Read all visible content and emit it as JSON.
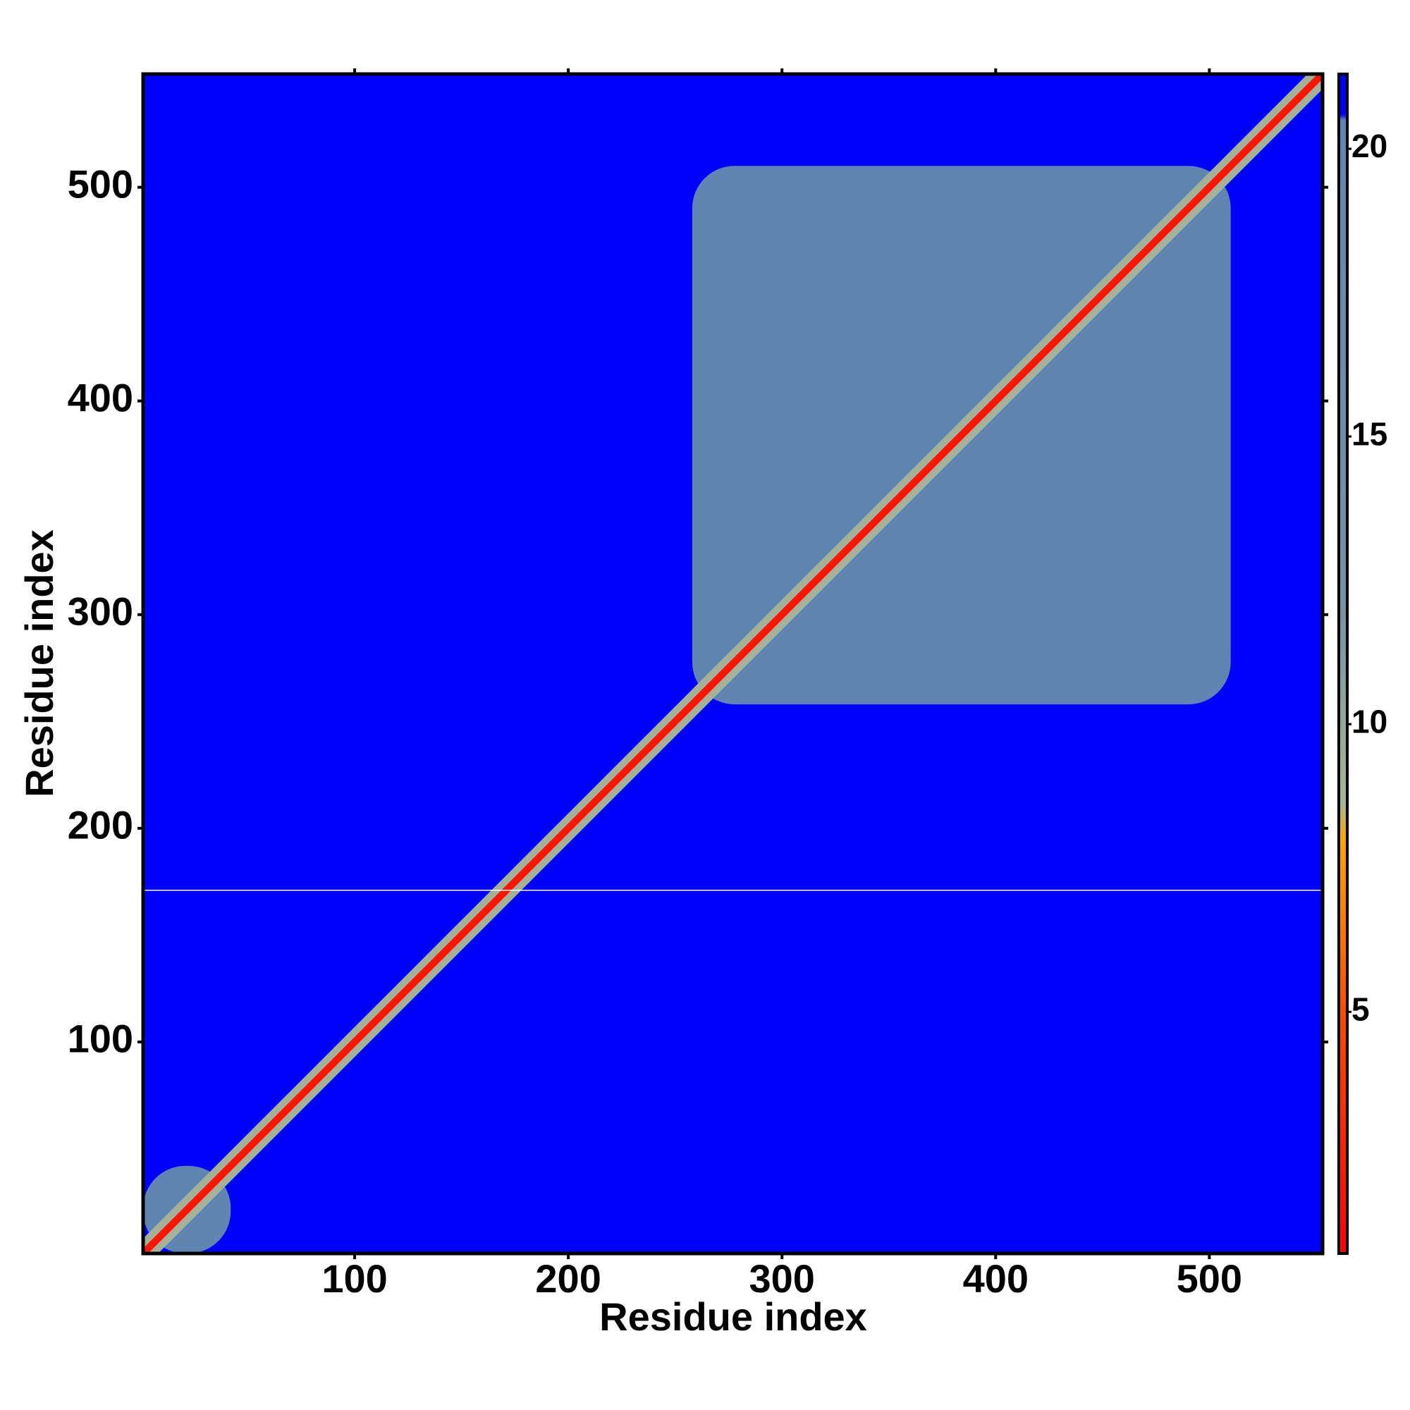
{
  "chart_data": {
    "type": "heatmap",
    "x_label": "Residue index",
    "y_label": "Residue index",
    "xlim": [
      1,
      553
    ],
    "ylim": [
      1,
      553
    ],
    "xticks": [
      100,
      200,
      300,
      400,
      500
    ],
    "yticks": [
      100,
      200,
      300,
      400,
      500
    ],
    "background_value": 21,
    "diagonal": {
      "band": 9,
      "core": 2
    },
    "domains": [
      {
        "x": [
          258,
          510
        ],
        "y": [
          258,
          510
        ],
        "value": 17
      },
      {
        "x": [
          1,
          42
        ],
        "y": [
          1,
          42
        ],
        "value": 17
      }
    ],
    "blank_rows": [
      171
    ],
    "colorbar": {
      "lim": [
        0.8,
        21.3
      ],
      "ticks": [
        5,
        10,
        15,
        20
      ],
      "colorscale": [
        [
          0.8,
          "#ff0000"
        ],
        [
          5,
          "#ff4a00"
        ],
        [
          8,
          "#ffa500"
        ],
        [
          8.6,
          "#a9b694"
        ],
        [
          12,
          "#7592a6"
        ],
        [
          20.5,
          "#5b87b5"
        ],
        [
          20.6,
          "#0000ff"
        ],
        [
          21.3,
          "#0000ff"
        ]
      ]
    }
  }
}
